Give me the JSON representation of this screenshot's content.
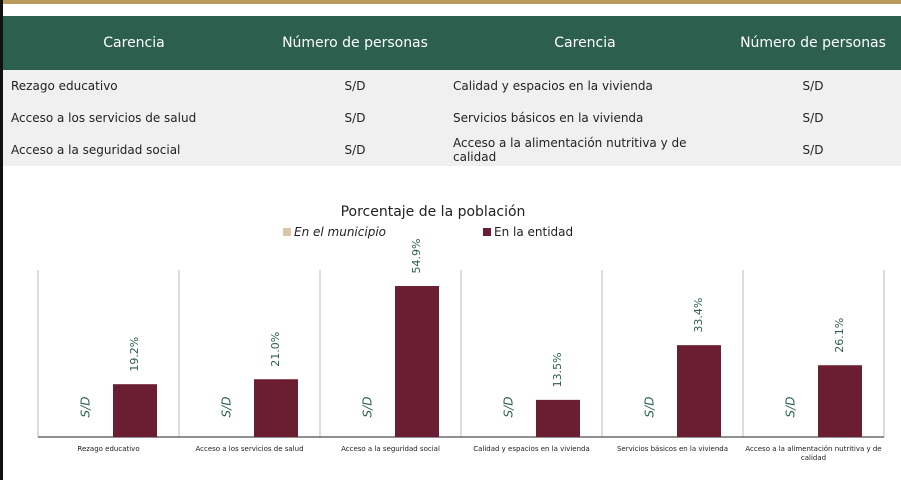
{
  "table": {
    "header": [
      "Carencia",
      "Número de personas",
      "Carencia",
      "Número de personas"
    ],
    "rows": [
      [
        "Rezago educativo",
        "S/D",
        "Calidad y espacios en la vivienda",
        "S/D"
      ],
      [
        "Acceso a los servicios de salud",
        "S/D",
        "Servicios básicos en la vivienda",
        "S/D"
      ],
      [
        "Acceso a la seguridad social",
        "S/D",
        "Acceso a la alimentación nutritiva y de calidad",
        "S/D"
      ]
    ]
  },
  "chart_data": {
    "type": "bar",
    "title": "Porcentaje de la población",
    "categories": [
      "Rezago educativo",
      "Acceso a los servicios de salud",
      "Acceso a la seguridad social",
      "Calidad y espacios en la vivienda",
      "Servicios básicos en la vivienda",
      "Acceso a la alimentación nutritiva y de calidad"
    ],
    "series": [
      {
        "name": "En el municipio",
        "color": "#d8c8a8",
        "values": [
          null,
          null,
          null,
          null,
          null,
          null
        ],
        "value_labels": [
          "S/D",
          "S/D",
          "S/D",
          "S/D",
          "S/D",
          "S/D"
        ]
      },
      {
        "name": "En la entidad",
        "color": "#6b1e32",
        "values": [
          19.2,
          21.0,
          54.9,
          13.5,
          33.4,
          26.1
        ],
        "value_labels": [
          "19.2%",
          "21.0%",
          "54.9%",
          "13.5%",
          "33.4%",
          "26.1%"
        ]
      }
    ]
  }
}
